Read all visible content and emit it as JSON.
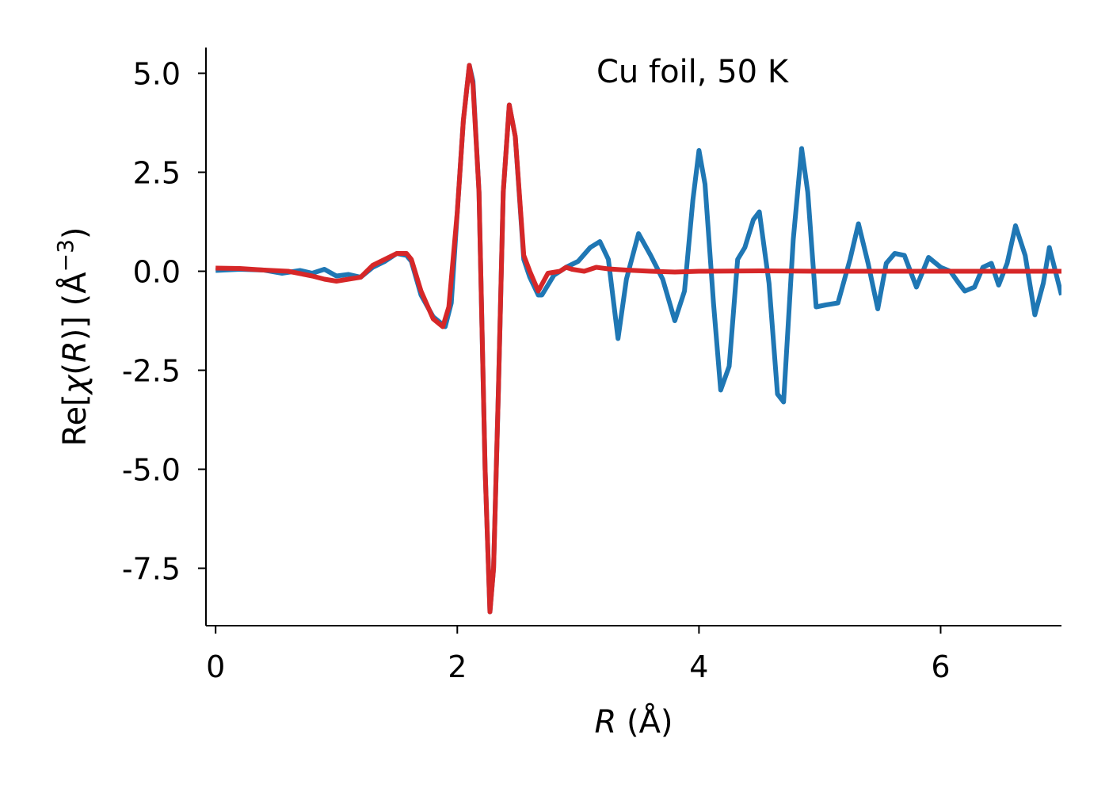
{
  "chart_data": {
    "type": "line",
    "annotation": "Cu foil, 50 K",
    "xlabel": {
      "italic": "R",
      "rest": " (Å)"
    },
    "ylabel": {
      "pre": "Re[",
      "chi": "χ",
      "open": "(",
      "var": "R",
      "close": ")] (Å",
      "sup": "−3",
      "end": ")"
    },
    "xlim": [
      -0.08,
      7.0
    ],
    "ylim": [
      -8.95,
      5.65
    ],
    "x_ticks": [
      0,
      2,
      4,
      6
    ],
    "x_tick_labels": [
      "0",
      "2",
      "4",
      "6"
    ],
    "y_ticks": [
      5.0,
      2.5,
      0.0,
      -2.5,
      -5.0,
      -7.5
    ],
    "y_tick_labels": [
      "5.0",
      "2.5",
      "0.0",
      "-2.5",
      "-5.0",
      "-7.5"
    ],
    "grid": false,
    "series": [
      {
        "color": "#1f77b4",
        "x": [
          0.0,
          0.2,
          0.4,
          0.55,
          0.7,
          0.8,
          0.9,
          1.0,
          1.1,
          1.2,
          1.3,
          1.4,
          1.5,
          1.58,
          1.62,
          1.7,
          1.8,
          1.9,
          1.95,
          2.0,
          2.05,
          2.1,
          2.13,
          2.18,
          2.23,
          2.27,
          2.3,
          2.34,
          2.38,
          2.43,
          2.48,
          2.55,
          2.6,
          2.67,
          2.7,
          2.8,
          2.9,
          3.0,
          3.1,
          3.18,
          3.25,
          3.33,
          3.4,
          3.5,
          3.6,
          3.7,
          3.8,
          3.88,
          3.95,
          4.0,
          4.05,
          4.12,
          4.18,
          4.25,
          4.32,
          4.38,
          4.45,
          4.5,
          4.58,
          4.65,
          4.7,
          4.78,
          4.85,
          4.9,
          4.97,
          5.05,
          5.15,
          5.25,
          5.32,
          5.4,
          5.48,
          5.55,
          5.62,
          5.7,
          5.8,
          5.9,
          6.0,
          6.08,
          6.15,
          6.2,
          6.28,
          6.35,
          6.42,
          6.48,
          6.55,
          6.62,
          6.7,
          6.78,
          6.85,
          6.9,
          7.0
        ],
        "y": [
          0.02,
          0.05,
          0.03,
          -0.05,
          0.02,
          -0.05,
          0.05,
          -0.12,
          -0.08,
          -0.15,
          0.1,
          0.25,
          0.45,
          0.4,
          0.25,
          -0.6,
          -1.15,
          -1.4,
          -0.8,
          1.5,
          3.8,
          5.2,
          4.8,
          2.0,
          -5.0,
          -8.6,
          -7.5,
          -3.0,
          2.0,
          4.2,
          3.4,
          0.3,
          -0.15,
          -0.6,
          -0.6,
          -0.1,
          0.1,
          0.25,
          0.6,
          0.75,
          0.3,
          -1.7,
          -0.2,
          0.95,
          0.4,
          -0.2,
          -1.25,
          -0.5,
          1.8,
          3.05,
          2.2,
          -0.8,
          -3.0,
          -2.4,
          0.3,
          0.6,
          1.3,
          1.5,
          -0.3,
          -3.1,
          -3.3,
          0.8,
          3.1,
          2.0,
          -0.9,
          -0.85,
          -0.8,
          0.3,
          1.2,
          0.2,
          -0.95,
          0.2,
          0.45,
          0.4,
          -0.4,
          0.35,
          0.1,
          0.0,
          -0.3,
          -0.5,
          -0.4,
          0.1,
          0.2,
          -0.35,
          0.2,
          1.15,
          0.4,
          -1.1,
          -0.3,
          0.6,
          -0.6
        ]
      },
      {
        "color": "#d62728",
        "x": [
          0.0,
          0.2,
          0.4,
          0.6,
          0.8,
          0.9,
          1.0,
          1.1,
          1.2,
          1.3,
          1.4,
          1.5,
          1.58,
          1.62,
          1.7,
          1.8,
          1.88,
          1.93,
          2.0,
          2.05,
          2.1,
          2.13,
          2.18,
          2.23,
          2.27,
          2.3,
          2.34,
          2.38,
          2.43,
          2.48,
          2.55,
          2.6,
          2.67,
          2.75,
          2.85,
          2.9,
          2.95,
          3.05,
          3.15,
          3.25,
          3.4,
          3.6,
          3.8,
          4.0,
          4.5,
          5.0,
          6.0,
          7.0
        ],
        "y": [
          0.08,
          0.07,
          0.03,
          0.0,
          -0.12,
          -0.2,
          -0.25,
          -0.2,
          -0.15,
          0.15,
          0.3,
          0.45,
          0.45,
          0.3,
          -0.5,
          -1.2,
          -1.4,
          -0.9,
          1.5,
          3.8,
          5.2,
          4.7,
          2.0,
          -5.0,
          -8.6,
          -7.5,
          -3.0,
          2.0,
          4.2,
          3.4,
          0.4,
          0.0,
          -0.5,
          -0.05,
          0.0,
          0.1,
          0.05,
          0.0,
          0.1,
          0.06,
          0.03,
          0.0,
          -0.02,
          0.0,
          0.01,
          0.0,
          0.0,
          0.0
        ]
      }
    ]
  }
}
